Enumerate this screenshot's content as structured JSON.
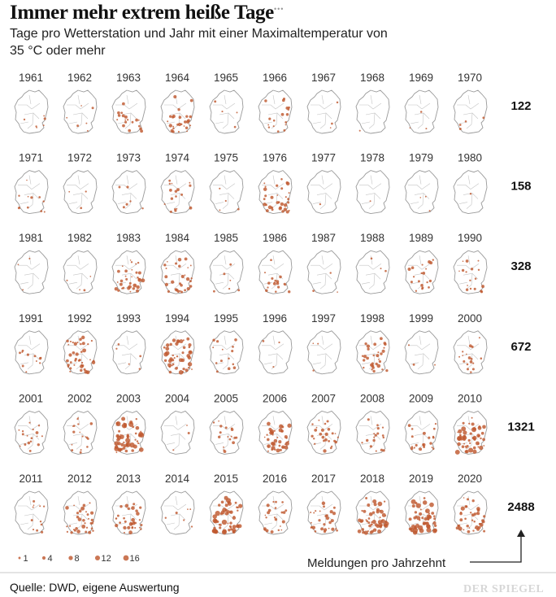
{
  "header": {
    "title": "Immer mehr extrem heiße Tage",
    "subtitle": "Tage pro Wetterstation und Jahr mit einer Maximaltemperatur von 35 °C oder mehr"
  },
  "footer": {
    "meldungen_label": "Meldungen pro Jahrzehnt",
    "source": "Quelle: DWD, eigene Auswertung",
    "brand": "DER SPIEGEL"
  },
  "colors": {
    "dot": "#c0592f",
    "outline": "#9a9a9a"
  },
  "chart_data": {
    "type": "small-multiples-dot-map",
    "legend": {
      "label": "",
      "sizes": [
        1,
        4,
        8,
        12,
        16
      ]
    },
    "decades": [
      {
        "years": [
          "1961",
          "1962",
          "1963",
          "1964",
          "1965",
          "1966",
          "1967",
          "1968",
          "1969",
          "1970"
        ],
        "total": "122",
        "intensity": [
          0.1,
          0.1,
          0.35,
          0.5,
          0.08,
          0.3,
          0.05,
          0.02,
          0.05,
          0.08
        ]
      },
      {
        "years": [
          "1971",
          "1972",
          "1973",
          "1974",
          "1975",
          "1976",
          "1977",
          "1978",
          "1979",
          "1980"
        ],
        "total": "158",
        "intensity": [
          0.2,
          0.05,
          0.1,
          0.3,
          0.08,
          0.6,
          0.02,
          0.01,
          0.05,
          0.01
        ]
      },
      {
        "years": [
          "1981",
          "1982",
          "1983",
          "1984",
          "1985",
          "1986",
          "1987",
          "1988",
          "1989",
          "1990"
        ],
        "total": "328",
        "intensity": [
          0.05,
          0.08,
          0.6,
          0.5,
          0.1,
          0.3,
          0.05,
          0.05,
          0.35,
          0.3
        ]
      },
      {
        "years": [
          "1991",
          "1992",
          "1993",
          "1994",
          "1995",
          "1996",
          "1997",
          "1998",
          "1999",
          "2000"
        ],
        "total": "672",
        "intensity": [
          0.2,
          0.7,
          0.1,
          0.8,
          0.25,
          0.05,
          0.05,
          0.55,
          0.05,
          0.3
        ]
      },
      {
        "years": [
          "2001",
          "2002",
          "2003",
          "2004",
          "2005",
          "2006",
          "2007",
          "2008",
          "2009",
          "2010"
        ],
        "total": "1321",
        "intensity": [
          0.3,
          0.3,
          1.0,
          0.05,
          0.3,
          0.7,
          0.45,
          0.3,
          0.4,
          0.9
        ]
      },
      {
        "years": [
          "2011",
          "2012",
          "2013",
          "2014",
          "2015",
          "2016",
          "2017",
          "2018",
          "2019",
          "2020"
        ],
        "total": "2488",
        "intensity": [
          0.2,
          0.6,
          0.6,
          0.1,
          1.0,
          0.4,
          0.5,
          0.9,
          0.95,
          0.7
        ]
      }
    ]
  }
}
